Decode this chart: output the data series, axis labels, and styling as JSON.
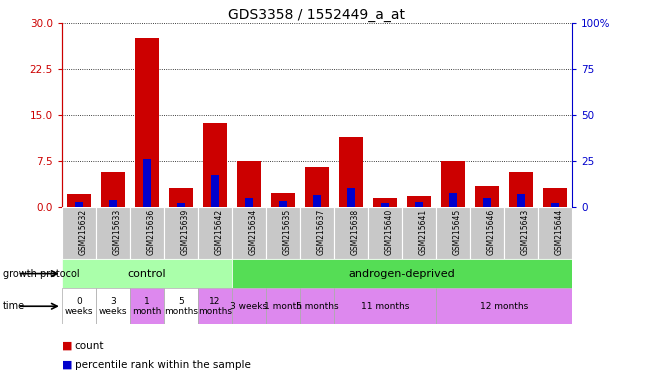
{
  "title": "GDS3358 / 1552449_a_at",
  "samples": [
    "GSM215632",
    "GSM215633",
    "GSM215636",
    "GSM215639",
    "GSM215642",
    "GSM215634",
    "GSM215635",
    "GSM215637",
    "GSM215638",
    "GSM215640",
    "GSM215641",
    "GSM215645",
    "GSM215646",
    "GSM215643",
    "GSM215644"
  ],
  "count_values": [
    2.2,
    5.8,
    27.5,
    3.2,
    13.8,
    7.5,
    2.3,
    6.5,
    11.5,
    1.5,
    1.8,
    7.5,
    3.5,
    5.8,
    3.2
  ],
  "percentile_values": [
    3.0,
    4.0,
    26.0,
    2.5,
    17.5,
    5.0,
    3.5,
    6.5,
    10.5,
    2.5,
    3.0,
    8.0,
    5.0,
    7.0,
    2.5
  ],
  "count_color": "#cc0000",
  "percentile_color": "#0000cc",
  "bar_bg_color": "#c8c8c8",
  "ylim_left": [
    0,
    30
  ],
  "ylim_right": [
    0,
    100
  ],
  "yticks_left": [
    0,
    7.5,
    15,
    22.5,
    30
  ],
  "yticks_right": [
    0,
    25,
    50,
    75,
    100
  ],
  "legend_count_label": "count",
  "legend_percentile_label": "percentile rank within the sample",
  "bg_color": "#ffffff",
  "axis_left_color": "#cc0000",
  "axis_right_color": "#0000cc",
  "control_color": "#aaffaa",
  "androgen_color": "#55dd55",
  "time_white": "#ffffff",
  "time_pink": "#dd88ee"
}
